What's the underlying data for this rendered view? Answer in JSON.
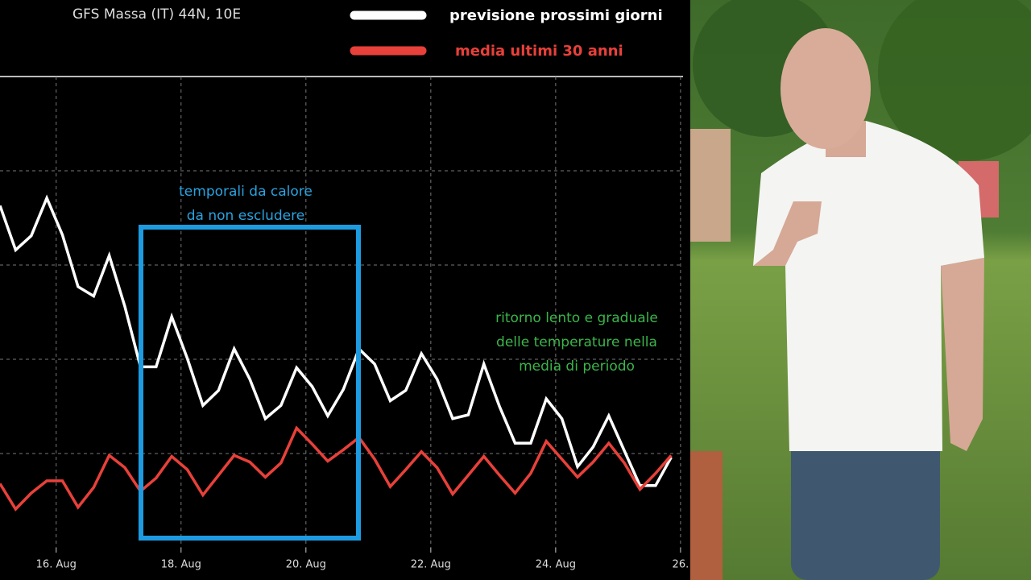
{
  "chart_data": {
    "type": "line",
    "title": "GFS Massa (IT) 44N, 10E",
    "x": [
      15.1,
      15.35,
      15.6,
      15.85,
      16.1,
      16.35,
      16.6,
      16.85,
      17.1,
      17.35,
      17.6,
      17.85,
      18.1,
      18.35,
      18.6,
      18.85,
      19.1,
      19.35,
      19.6,
      19.85,
      20.1,
      20.35,
      20.6,
      20.85,
      21.1,
      21.35,
      21.6,
      21.85,
      22.1,
      22.35,
      22.6,
      22.85,
      23.1,
      23.35,
      23.6,
      23.85,
      24.1,
      24.35,
      24.6,
      24.85,
      25.1,
      25.35,
      25.6,
      25.85
    ],
    "series": [
      {
        "name": "previsione prossimi giorni",
        "color": "#ffffff",
        "values": [
          3.63,
          3.16,
          3.31,
          3.71,
          3.32,
          2.77,
          2.67,
          3.1,
          2.56,
          1.92,
          1.92,
          2.45,
          2.01,
          1.51,
          1.67,
          2.11,
          1.79,
          1.37,
          1.51,
          1.91,
          1.71,
          1.4,
          1.68,
          2.11,
          1.95,
          1.56,
          1.67,
          2.06,
          1.79,
          1.37,
          1.41,
          1.95,
          1.5,
          1.11,
          1.11,
          1.58,
          1.37,
          0.86,
          1.07,
          1.4,
          1.03,
          0.66,
          0.66,
          0.96
        ]
      },
      {
        "name": "media ultimi 30 anni",
        "color": "#e8403a",
        "values": [
          0.68,
          0.41,
          0.58,
          0.71,
          0.71,
          0.43,
          0.64,
          0.98,
          0.85,
          0.6,
          0.74,
          0.97,
          0.83,
          0.56,
          0.77,
          0.98,
          0.91,
          0.75,
          0.9,
          1.27,
          1.1,
          0.92,
          1.04,
          1.17,
          0.94,
          0.65,
          0.83,
          1.02,
          0.85,
          0.57,
          0.77,
          0.97,
          0.77,
          0.58,
          0.79,
          1.13,
          0.94,
          0.75,
          0.91,
          1.11,
          0.9,
          0.62,
          0.79,
          0.98
        ]
      }
    ],
    "xlim": [
      15.1,
      26.04
    ],
    "xticks": [
      {
        "value": 16,
        "label": "16. Aug"
      },
      {
        "value": 18,
        "label": "18. Aug"
      },
      {
        "value": 20,
        "label": "20. Aug"
      },
      {
        "value": 22,
        "label": "22. Aug"
      },
      {
        "value": 24,
        "label": "24. Aug"
      },
      {
        "value": 26,
        "label": "26."
      }
    ],
    "ylim": [
      0,
      5
    ],
    "yticks": [
      1,
      2,
      3,
      4,
      5
    ],
    "grid": true,
    "annotations": [
      {
        "color": "#2aa3e0",
        "lines": [
          "temporali da calore",
          "da non escludere"
        ]
      },
      {
        "color": "#3bb54a",
        "lines": [
          "ritorno lento e graduale",
          "delle temperature nella",
          "media di periodo"
        ]
      }
    ]
  }
}
